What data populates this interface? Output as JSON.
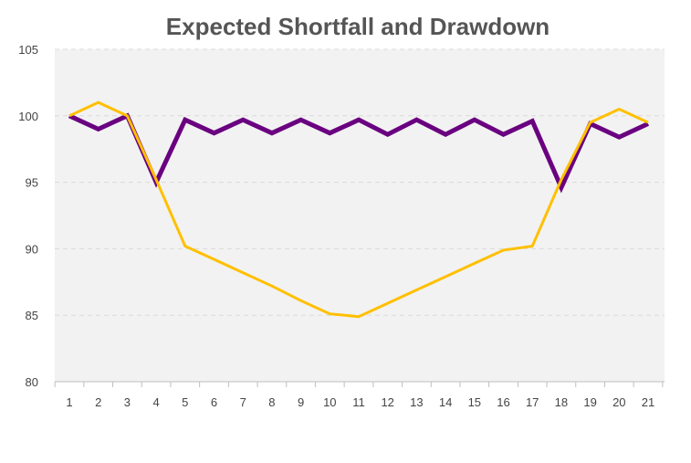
{
  "chart_data": {
    "type": "line",
    "title": "Expected Shortfall and Drawdown",
    "x": [
      "1",
      "2",
      "3",
      "4",
      "5",
      "6",
      "7",
      "8",
      "9",
      "10",
      "11",
      "12",
      "13",
      "14",
      "15",
      "16",
      "17",
      "18",
      "19",
      "20",
      "21"
    ],
    "ylim": [
      80,
      105
    ],
    "yticks": [
      "80",
      "85",
      "90",
      "95",
      "100",
      "105"
    ],
    "grid": true,
    "plot_background": "#f2f2f2",
    "series": [
      {
        "color": "#6a0080",
        "values": [
          100,
          99,
          100,
          95,
          99.7,
          98.7,
          99.7,
          98.7,
          99.7,
          98.7,
          99.7,
          98.6,
          99.7,
          98.6,
          99.7,
          98.6,
          99.6,
          94.6,
          99.4,
          98.4,
          99.4
        ]
      },
      {
        "color": "#ffc000",
        "values": [
          100,
          101,
          100,
          95.2,
          90.2,
          89.2,
          88.2,
          87.2,
          86.1,
          85.1,
          84.9,
          85.9,
          86.9,
          87.9,
          88.9,
          89.9,
          90.2,
          95.2,
          99.5,
          100.5,
          99.5
        ]
      }
    ]
  }
}
